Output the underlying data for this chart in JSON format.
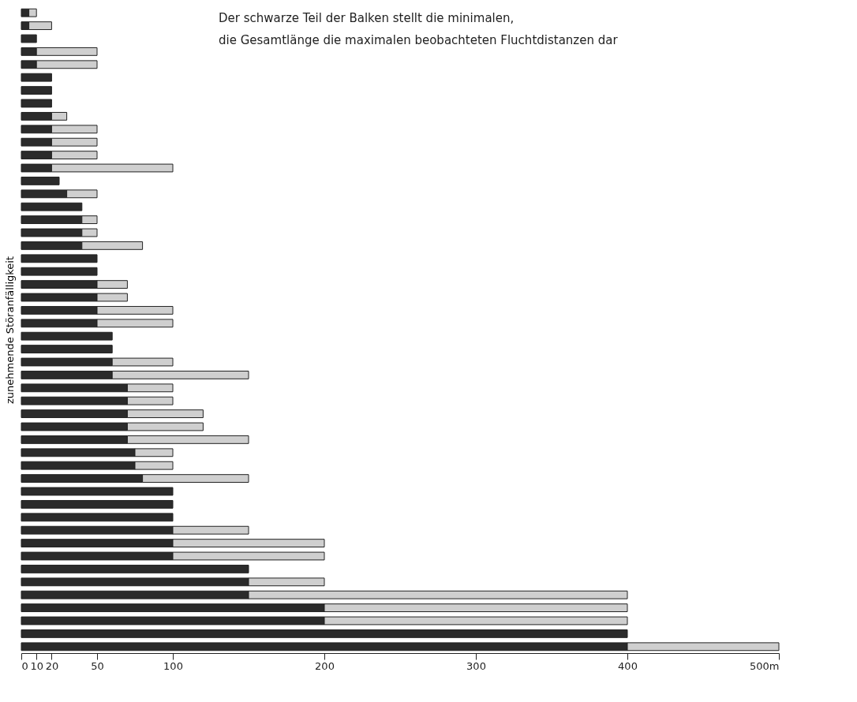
{
  "chart_data": {
    "type": "bar",
    "orientation": "horizontal",
    "stacked": true,
    "ylabel": "zunehmende Störanfälligkeit",
    "annotations": [
      "Der schwarze Teil der Balken stellt die minimalen,",
      "die Gesamtlänge die maximalen beobachteten Fluchtdistanzen dar"
    ],
    "categories": [
      null,
      null,
      null,
      null,
      null,
      null,
      null,
      null,
      null,
      null,
      null,
      null,
      null,
      null,
      null,
      null,
      null,
      null,
      null,
      null,
      null,
      null,
      null,
      null,
      null,
      null,
      null,
      null,
      null,
      null,
      null,
      null,
      null,
      null,
      null,
      null,
      null,
      null,
      null,
      null,
      null,
      null,
      null,
      null,
      null,
      null,
      null,
      null,
      null,
      null
    ],
    "series": [
      {
        "color": "#2b2b2b",
        "values": [
          5,
          5,
          10,
          10,
          10,
          20,
          20,
          20,
          20,
          20,
          20,
          20,
          20,
          25,
          30,
          40,
          40,
          40,
          40,
          50,
          50,
          50,
          50,
          50,
          50,
          60,
          60,
          60,
          60,
          70,
          70,
          70,
          70,
          70,
          75,
          75,
          80,
          100,
          100,
          100,
          100,
          100,
          100,
          150,
          150,
          150,
          200,
          200,
          400,
          400
        ]
      },
      {
        "color": "#cfcfcf",
        "values": [
          5,
          15,
          null,
          40,
          40,
          null,
          null,
          null,
          10,
          30,
          30,
          30,
          80,
          null,
          20,
          null,
          10,
          10,
          40,
          null,
          null,
          20,
          20,
          50,
          50,
          null,
          null,
          40,
          90,
          30,
          30,
          50,
          50,
          80,
          25,
          25,
          70,
          null,
          null,
          null,
          50,
          100,
          100,
          null,
          50,
          250,
          200,
          200,
          null,
          100
        ]
      }
    ],
    "xlim": [
      0,
      500
    ],
    "xticks": [
      0,
      10,
      20,
      50,
      100,
      200,
      300,
      400,
      {
        "value": 500,
        "label": "500m"
      }
    ],
    "grid": false
  }
}
